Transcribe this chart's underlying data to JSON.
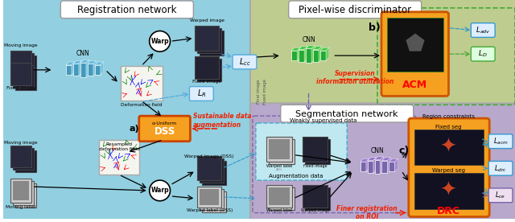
{
  "title_reg": "Registration network",
  "title_disc": "Pixel-wise discriminator",
  "title_seg": "Segmentation network",
  "bg_reg": "#92cfe0",
  "bg_disc": "#bfcc90",
  "bg_seg": "#b8a8cc",
  "orange_box": "#f5a020",
  "cyan_block": "#4499bb",
  "green_block": "#22aa33",
  "purple_block": "#7766aa",
  "lcc_color": "#55aadd",
  "lr_color": "#55aadd",
  "red_dash": "#ee2200",
  "blue_dash": "#3399cc",
  "green_dash": "#44aa33",
  "purple_dash": "#7766aa"
}
